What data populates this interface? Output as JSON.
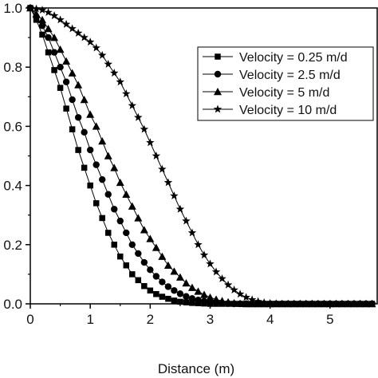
{
  "chart_data": {
    "type": "line",
    "title": "",
    "xlabel": "Distance (m)",
    "ylabel": "",
    "xlim": [
      0,
      5.8
    ],
    "ylim": [
      0,
      1.0
    ],
    "x_ticks": [
      0,
      1,
      2,
      3,
      4,
      5
    ],
    "y_ticks": [
      0.0,
      0.2,
      0.4,
      0.6,
      0.8,
      1.0
    ],
    "x_tick_labels": [
      "0",
      "1",
      "2",
      "3",
      "4",
      "5"
    ],
    "y_tick_labels": [
      "0.0",
      "0.2",
      "0.4",
      "0.6",
      "0.8",
      "1.0"
    ],
    "grid": false,
    "legend_position": "top-right",
    "line_color": "#000000",
    "series": [
      {
        "name": "Velocity = 0.25 m/d",
        "marker": "square",
        "x": [
          0,
          0.1,
          0.2,
          0.3,
          0.4,
          0.5,
          0.6,
          0.7,
          0.8,
          0.9,
          1.0,
          1.1,
          1.2,
          1.3,
          1.4,
          1.5,
          1.6,
          1.7,
          1.8,
          1.9,
          2.0,
          2.1,
          2.2,
          2.3,
          2.4,
          2.5,
          2.6,
          2.7,
          2.8,
          2.9,
          3.0,
          3.1,
          3.2,
          3.3,
          3.4,
          3.5,
          3.6,
          3.7,
          3.8,
          3.9,
          4.0,
          4.1,
          4.2,
          4.3,
          4.4,
          4.5,
          4.6,
          4.7,
          4.8,
          4.9,
          5.0,
          5.1,
          5.2,
          5.3,
          5.4,
          5.5,
          5.6,
          5.7
        ],
        "y": [
          1.0,
          0.96,
          0.91,
          0.85,
          0.79,
          0.73,
          0.66,
          0.59,
          0.52,
          0.46,
          0.4,
          0.34,
          0.29,
          0.24,
          0.2,
          0.16,
          0.13,
          0.1,
          0.08,
          0.06,
          0.045,
          0.033,
          0.024,
          0.017,
          0.011,
          0.007,
          0.005,
          0.003,
          0.002,
          0.001,
          0.0,
          0.0,
          0.0,
          0.0,
          0.0,
          0.0,
          0.0,
          0.0,
          0.0,
          0.0,
          0.0,
          0.0,
          0.0,
          0.0,
          0.0,
          0.0,
          0.0,
          0.0,
          0.0,
          0.0,
          0.0,
          0.0,
          0.0,
          0.0,
          0.0,
          0.0,
          0.0,
          0.0
        ]
      },
      {
        "name": "Velocity = 2.5 m/d",
        "marker": "circle",
        "x": [
          0,
          0.1,
          0.2,
          0.3,
          0.4,
          0.5,
          0.6,
          0.7,
          0.8,
          0.9,
          1.0,
          1.1,
          1.2,
          1.3,
          1.4,
          1.5,
          1.6,
          1.7,
          1.8,
          1.9,
          2.0,
          2.1,
          2.2,
          2.3,
          2.4,
          2.5,
          2.6,
          2.7,
          2.8,
          2.9,
          3.0,
          3.1,
          3.2,
          3.3,
          3.4,
          3.5,
          3.6,
          3.7,
          3.8,
          3.9,
          4.0,
          4.1,
          4.2,
          4.3,
          4.4,
          4.5,
          4.6,
          4.7,
          4.8,
          4.9,
          5.0,
          5.1,
          5.2,
          5.3,
          5.4,
          5.5,
          5.6,
          5.7
        ],
        "y": [
          1.0,
          0.97,
          0.94,
          0.9,
          0.85,
          0.8,
          0.75,
          0.69,
          0.63,
          0.58,
          0.52,
          0.47,
          0.42,
          0.37,
          0.32,
          0.28,
          0.24,
          0.2,
          0.17,
          0.14,
          0.115,
          0.093,
          0.074,
          0.058,
          0.045,
          0.034,
          0.025,
          0.018,
          0.013,
          0.009,
          0.006,
          0.004,
          0.002,
          0.001,
          0.0,
          0.0,
          0.0,
          0.0,
          0.0,
          0.0,
          0.0,
          0.0,
          0.0,
          0.0,
          0.0,
          0.0,
          0.0,
          0.0,
          0.0,
          0.0,
          0.0,
          0.0,
          0.0,
          0.0,
          0.0,
          0.0,
          0.0,
          0.0
        ]
      },
      {
        "name": "Velocity = 5 m/d",
        "marker": "triangle",
        "x": [
          0,
          0.1,
          0.2,
          0.3,
          0.4,
          0.5,
          0.6,
          0.7,
          0.8,
          0.9,
          1.0,
          1.1,
          1.2,
          1.3,
          1.4,
          1.5,
          1.6,
          1.7,
          1.8,
          1.9,
          2.0,
          2.1,
          2.2,
          2.3,
          2.4,
          2.5,
          2.6,
          2.7,
          2.8,
          2.9,
          3.0,
          3.1,
          3.2,
          3.3,
          3.4,
          3.5,
          3.6,
          3.7,
          3.8,
          3.9,
          4.0,
          4.1,
          4.2,
          4.3,
          4.4,
          4.5,
          4.6,
          4.7,
          4.8,
          4.9,
          5.0,
          5.1,
          5.2,
          5.3,
          5.4,
          5.5,
          5.6,
          5.7
        ],
        "y": [
          1.0,
          0.98,
          0.96,
          0.93,
          0.9,
          0.86,
          0.82,
          0.78,
          0.74,
          0.69,
          0.64,
          0.6,
          0.55,
          0.5,
          0.46,
          0.41,
          0.37,
          0.33,
          0.29,
          0.25,
          0.22,
          0.19,
          0.16,
          0.13,
          0.11,
          0.09,
          0.07,
          0.055,
          0.042,
          0.031,
          0.022,
          0.015,
          0.01,
          0.006,
          0.003,
          0.001,
          0.0,
          0.0,
          0.0,
          0.0,
          0.0,
          0.0,
          0.0,
          0.0,
          0.0,
          0.0,
          0.0,
          0.0,
          0.0,
          0.0,
          0.0,
          0.0,
          0.0,
          0.0,
          0.0,
          0.0,
          0.0,
          0.0
        ]
      },
      {
        "name": "Velocity = 10 m/d",
        "marker": "star",
        "x": [
          0,
          0.1,
          0.2,
          0.3,
          0.4,
          0.5,
          0.6,
          0.7,
          0.8,
          0.9,
          1.0,
          1.1,
          1.2,
          1.3,
          1.4,
          1.5,
          1.6,
          1.7,
          1.8,
          1.9,
          2.0,
          2.1,
          2.2,
          2.3,
          2.4,
          2.5,
          2.6,
          2.7,
          2.8,
          2.9,
          3.0,
          3.1,
          3.2,
          3.3,
          3.4,
          3.5,
          3.6,
          3.7,
          3.8,
          3.9,
          4.0,
          4.1,
          4.2,
          4.3,
          4.4,
          4.5,
          4.6,
          4.7,
          4.8,
          4.9,
          5.0,
          5.1,
          5.2,
          5.3,
          5.4,
          5.5,
          5.6,
          5.7
        ],
        "y": [
          1.0,
          0.997,
          0.993,
          0.985,
          0.974,
          0.96,
          0.945,
          0.93,
          0.915,
          0.9,
          0.885,
          0.865,
          0.84,
          0.81,
          0.78,
          0.75,
          0.71,
          0.67,
          0.63,
          0.59,
          0.545,
          0.5,
          0.455,
          0.41,
          0.365,
          0.32,
          0.28,
          0.24,
          0.2,
          0.165,
          0.135,
          0.108,
          0.085,
          0.064,
          0.047,
          0.033,
          0.022,
          0.014,
          0.008,
          0.004,
          0.002,
          0.001,
          0.0,
          0.0,
          0.0,
          0.0,
          0.0,
          0.0,
          0.0,
          0.0,
          0.0,
          0.0,
          0.0,
          0.0,
          0.0,
          0.0,
          0.0,
          0.0
        ]
      }
    ]
  }
}
